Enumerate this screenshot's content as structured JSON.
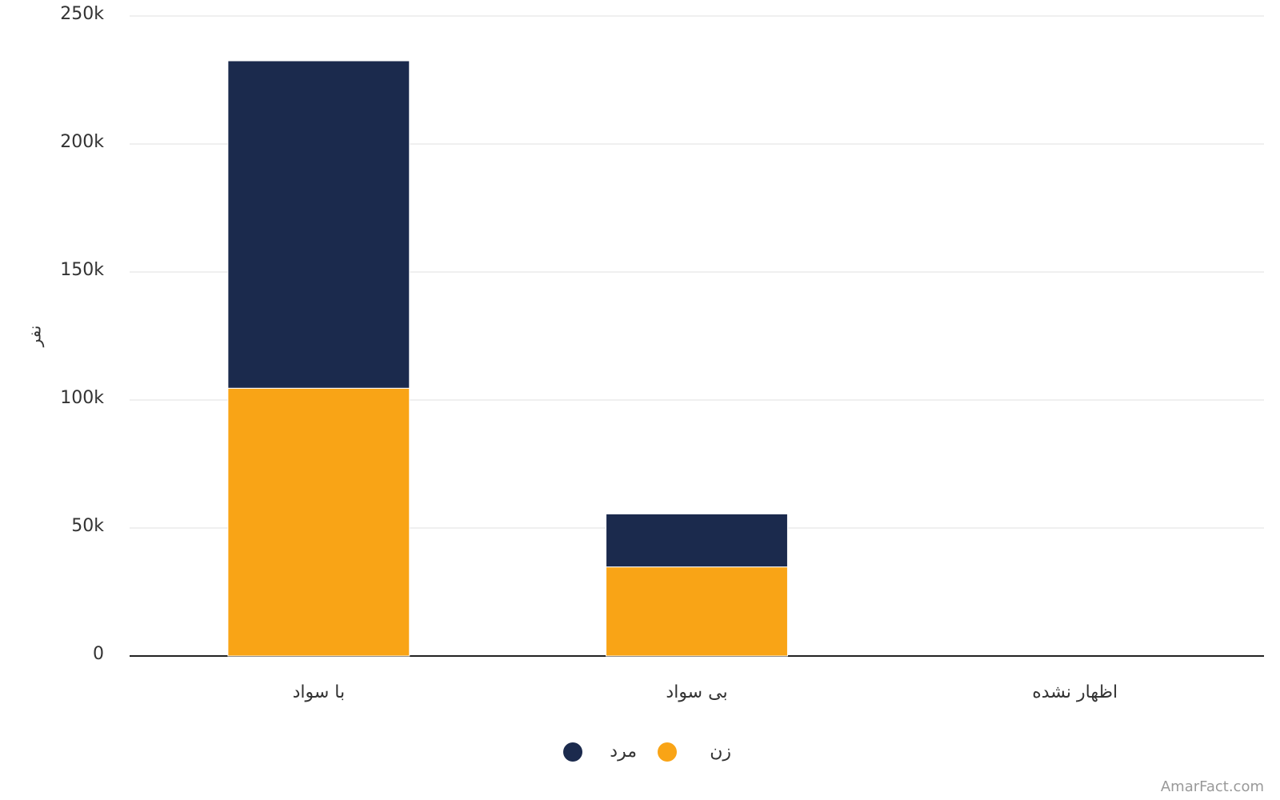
{
  "chart_data": {
    "type": "stacked_bar",
    "y_label": "نفر",
    "categories": [
      "با سواد",
      "بی سواد",
      "اظهار نشده"
    ],
    "series": [
      {
        "name": "زن",
        "color": "#f9a416",
        "values": [
          104600,
          34800,
          0
        ]
      },
      {
        "name": "مرد",
        "color": "#1b2a4d",
        "values": [
          127900,
          20700,
          0
        ]
      }
    ],
    "ylim": [
      0,
      250000
    ],
    "yticks": [
      0,
      {
        "value": 50000,
        "label": "50k"
      },
      {
        "value": 100000,
        "label": "100k"
      },
      {
        "value": 150000,
        "label": "150k"
      },
      {
        "value": 200000,
        "label": "200k"
      },
      {
        "value": 250000,
        "label": "250k"
      }
    ],
    "grid": true,
    "legend": "bottom",
    "watermark": "AmarFact.com"
  }
}
